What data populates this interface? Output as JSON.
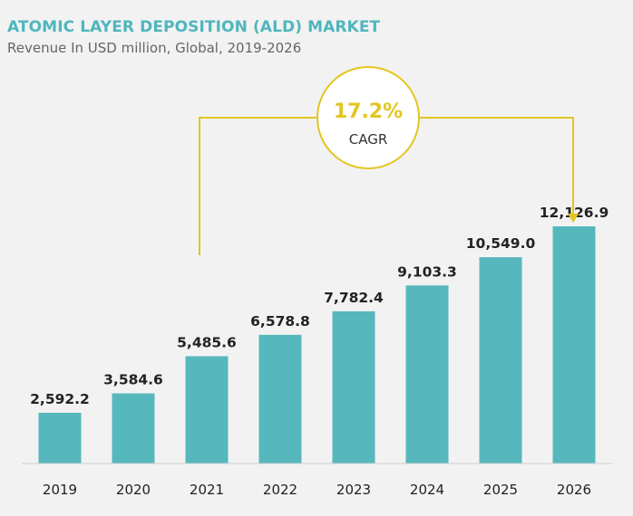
{
  "title": "ATOMIC LAYER DEPOSITION (ALD) MARKET",
  "subtitle": "Revenue In USD million, Global, 2019-2026",
  "colors": {
    "bar": "#56b8bd",
    "accent": "#e3c520",
    "title": "#4fb6bd",
    "axis": "#cfcfcf"
  },
  "cagr": {
    "value": "17.2%",
    "label": "CAGR"
  },
  "chart_data": {
    "type": "bar",
    "title": "ATOMIC LAYER DEPOSITION (ALD) MARKET",
    "subtitle": "Revenue In USD million, Global, 2019-2026",
    "categories": [
      "2019",
      "2020",
      "2021",
      "2022",
      "2023",
      "2024",
      "2025",
      "2026"
    ],
    "values": [
      2592.2,
      3584.6,
      5485.6,
      6578.8,
      7782.4,
      9103.3,
      10549.0,
      12126.9
    ],
    "value_labels": [
      "2,592.2",
      "3,584.6",
      "5,485.6",
      "6,578.8",
      "7,782.4",
      "9,103.3",
      "10,549.0",
      "12,126.9"
    ],
    "xlabel": "",
    "ylabel": "",
    "ylim": [
      0,
      12126.9
    ],
    "grid": false,
    "legend": "none"
  }
}
